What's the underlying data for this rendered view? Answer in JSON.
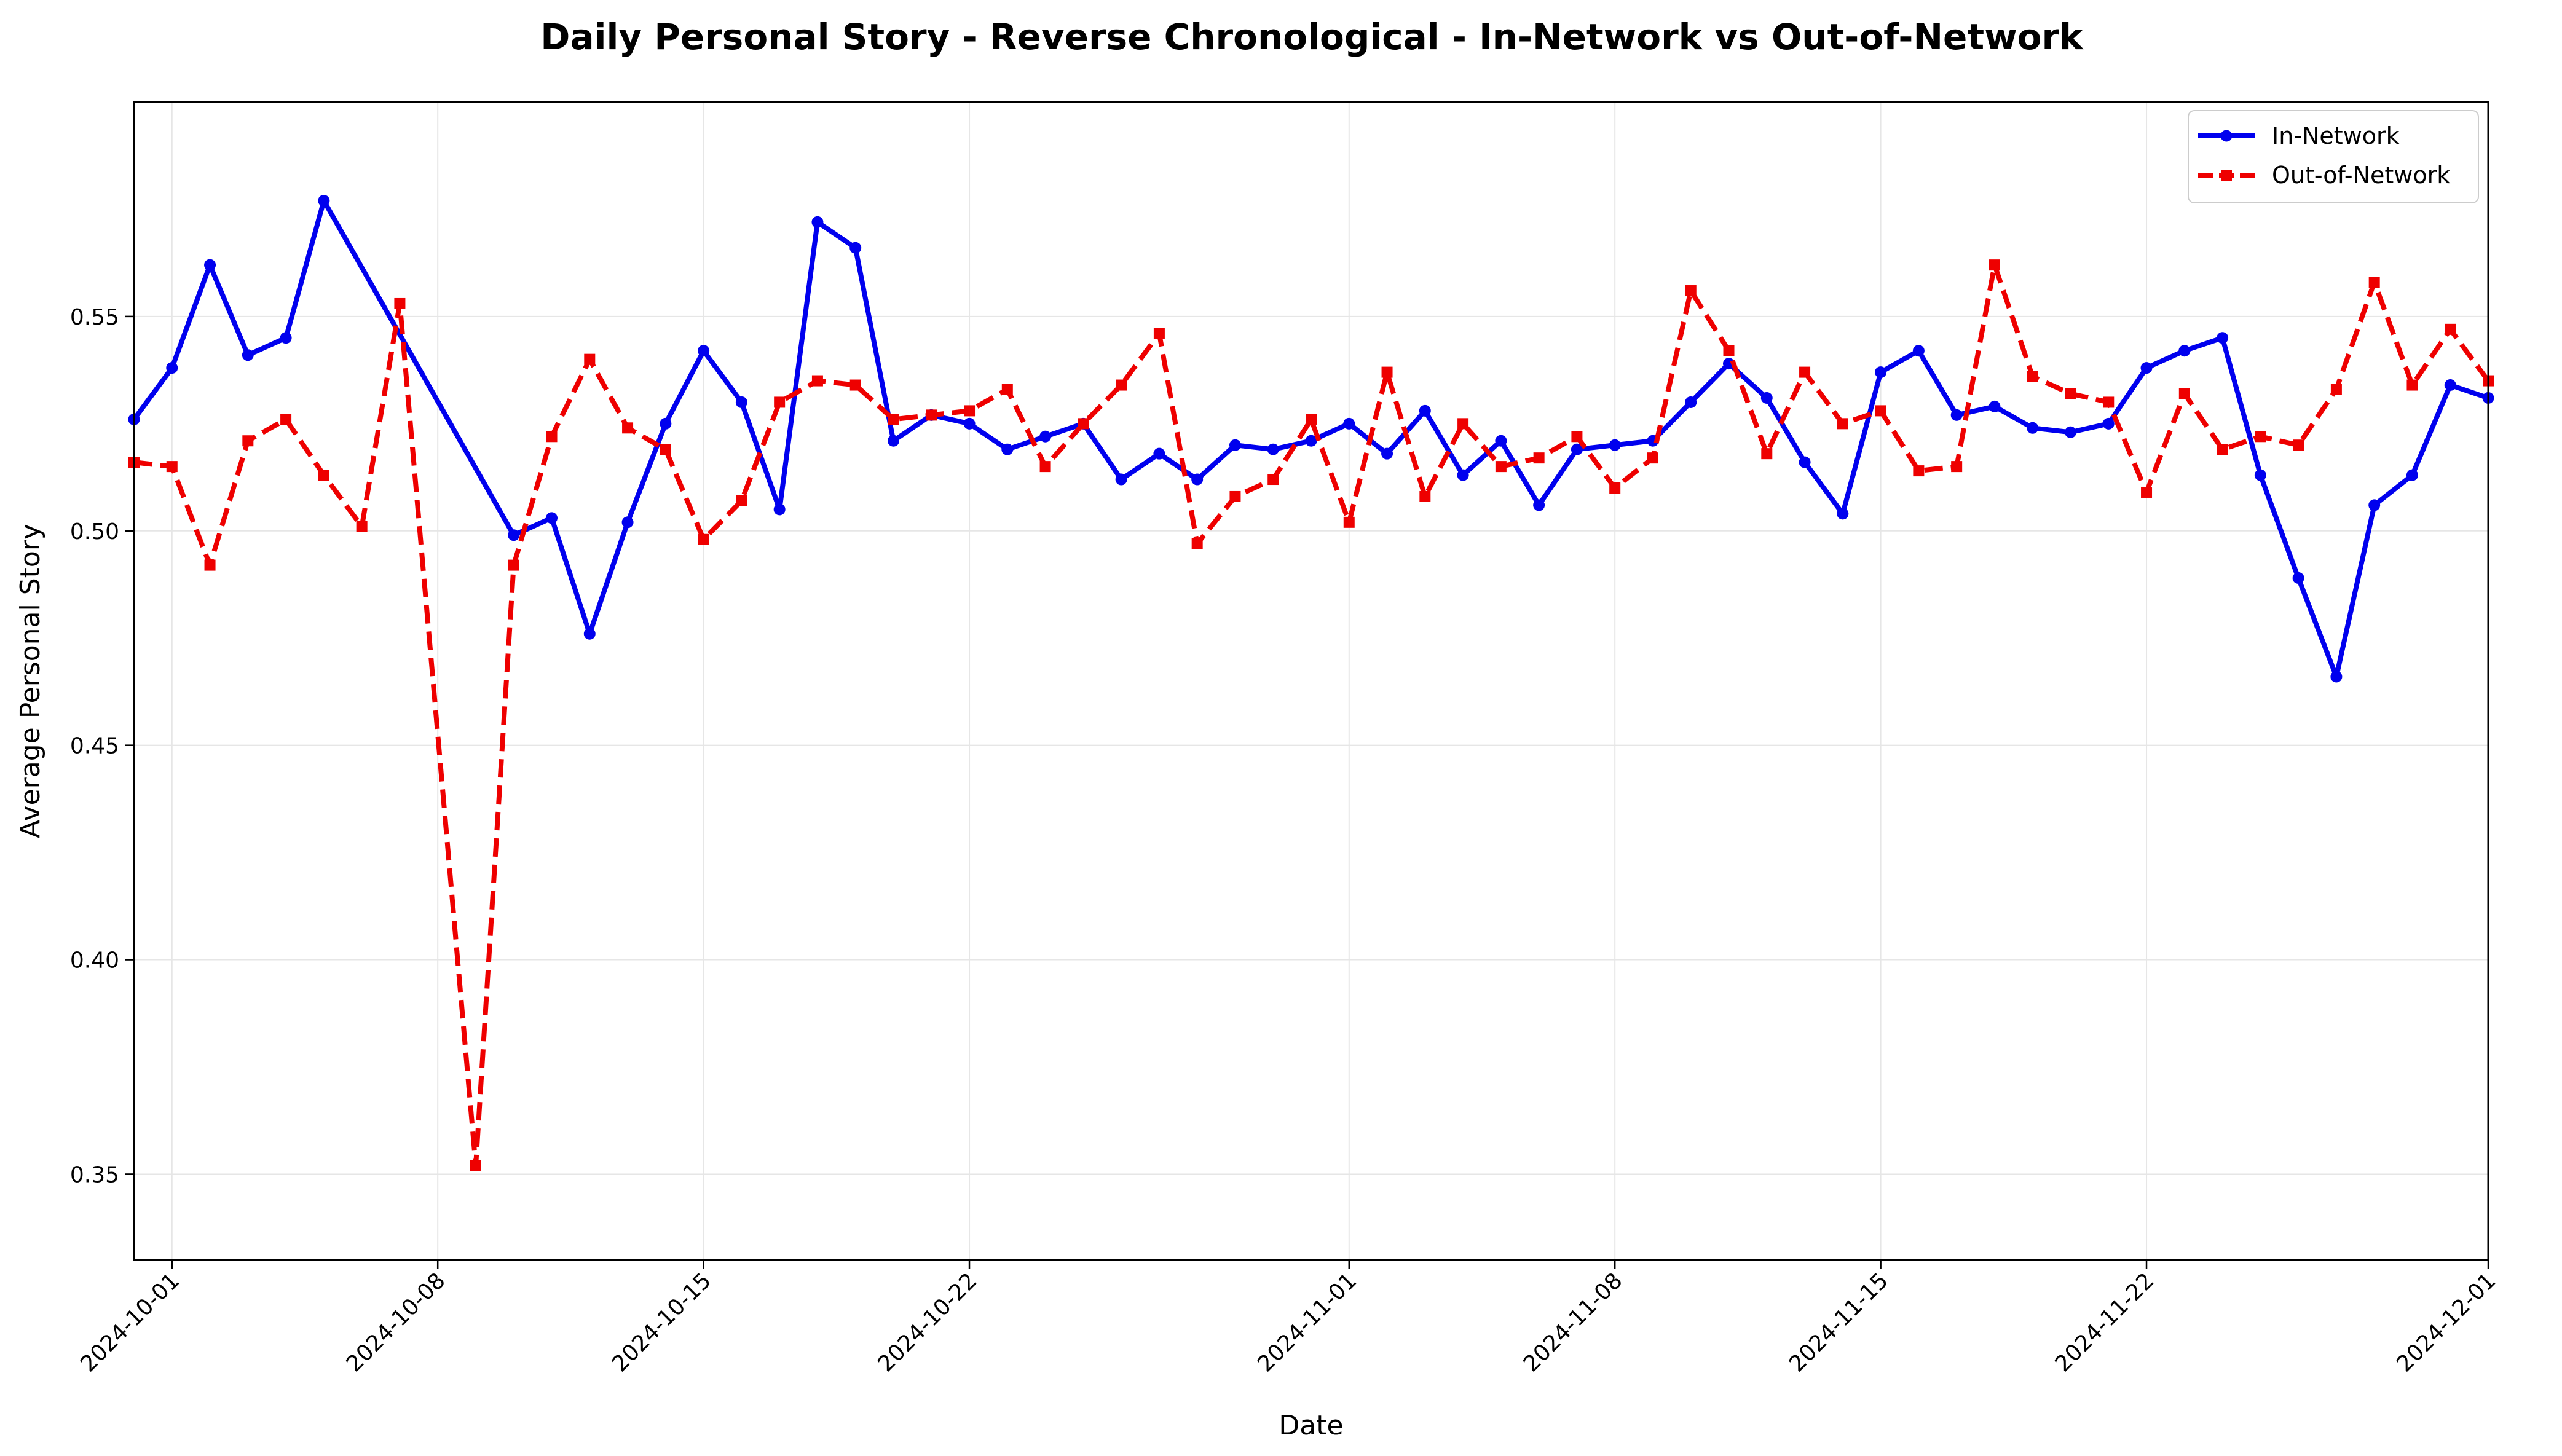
{
  "chart_data": {
    "type": "line",
    "title": "Daily Personal Story - Reverse Chronological - In-Network vs Out-of-Network",
    "xlabel": "Date",
    "ylabel": "Average Personal Story",
    "xlim": [
      "2024-09-30",
      "2024-12-01"
    ],
    "ylim": [
      0.33,
      0.6
    ],
    "x_ticks": [
      "2024-10-01",
      "2024-10-08",
      "2024-10-15",
      "2024-10-22",
      "2024-11-01",
      "2024-11-08",
      "2024-11-15",
      "2024-11-22",
      "2024-12-01"
    ],
    "y_ticks": [
      0.35,
      0.4,
      0.45,
      0.5,
      0.55
    ],
    "y_tick_labels": [
      "0.35",
      "0.40",
      "0.45",
      "0.50",
      "0.55"
    ],
    "grid": true,
    "legend_position": "top-right",
    "series": [
      {
        "name": "In-Network",
        "color": "#0000ee",
        "style": "solid",
        "marker": "circle",
        "points": [
          [
            "2024-09-30",
            0.526
          ],
          [
            "2024-10-01",
            0.538
          ],
          [
            "2024-10-02",
            0.562
          ],
          [
            "2024-10-03",
            0.541
          ],
          [
            "2024-10-04",
            0.545
          ],
          [
            "2024-10-05",
            0.577
          ],
          [
            "2024-10-10",
            0.499
          ],
          [
            "2024-10-11",
            0.503
          ],
          [
            "2024-10-12",
            0.476
          ],
          [
            "2024-10-13",
            0.502
          ],
          [
            "2024-10-14",
            0.525
          ],
          [
            "2024-10-15",
            0.542
          ],
          [
            "2024-10-16",
            0.53
          ],
          [
            "2024-10-17",
            0.505
          ],
          [
            "2024-10-18",
            0.572
          ],
          [
            "2024-10-19",
            0.566
          ],
          [
            "2024-10-20",
            0.521
          ],
          [
            "2024-10-21",
            0.527
          ],
          [
            "2024-10-22",
            0.525
          ],
          [
            "2024-10-23",
            0.519
          ],
          [
            "2024-10-24",
            0.522
          ],
          [
            "2024-10-25",
            0.525
          ],
          [
            "2024-10-26",
            0.512
          ],
          [
            "2024-10-27",
            0.518
          ],
          [
            "2024-10-28",
            0.512
          ],
          [
            "2024-10-29",
            0.52
          ],
          [
            "2024-10-30",
            0.519
          ],
          [
            "2024-10-31",
            0.521
          ],
          [
            "2024-11-01",
            0.525
          ],
          [
            "2024-11-02",
            0.518
          ],
          [
            "2024-11-03",
            0.528
          ],
          [
            "2024-11-04",
            0.513
          ],
          [
            "2024-11-05",
            0.521
          ],
          [
            "2024-11-06",
            0.506
          ],
          [
            "2024-11-07",
            0.519
          ],
          [
            "2024-11-08",
            0.52
          ],
          [
            "2024-11-09",
            0.521
          ],
          [
            "2024-11-10",
            0.53
          ],
          [
            "2024-11-11",
            0.539
          ],
          [
            "2024-11-12",
            0.531
          ],
          [
            "2024-11-13",
            0.516
          ],
          [
            "2024-11-14",
            0.504
          ],
          [
            "2024-11-15",
            0.537
          ],
          [
            "2024-11-16",
            0.542
          ],
          [
            "2024-11-17",
            0.527
          ],
          [
            "2024-11-18",
            0.529
          ],
          [
            "2024-11-19",
            0.524
          ],
          [
            "2024-11-20",
            0.523
          ],
          [
            "2024-11-21",
            0.525
          ],
          [
            "2024-11-22",
            0.538
          ],
          [
            "2024-11-23",
            0.542
          ],
          [
            "2024-11-24",
            0.545
          ],
          [
            "2024-11-25",
            0.513
          ],
          [
            "2024-11-26",
            0.489
          ],
          [
            "2024-11-27",
            0.466
          ],
          [
            "2024-11-28",
            0.506
          ],
          [
            "2024-11-29",
            0.513
          ],
          [
            "2024-11-30",
            0.534
          ],
          [
            "2024-12-01",
            0.531
          ]
        ]
      },
      {
        "name": "Out-of-Network",
        "color": "#ee0000",
        "style": "dashed",
        "marker": "square",
        "points": [
          [
            "2024-09-30",
            0.516
          ],
          [
            "2024-10-01",
            0.515
          ],
          [
            "2024-10-02",
            0.492
          ],
          [
            "2024-10-03",
            0.521
          ],
          [
            "2024-10-04",
            0.526
          ],
          [
            "2024-10-05",
            0.513
          ],
          [
            "2024-10-06",
            0.501
          ],
          [
            "2024-10-07",
            0.553
          ],
          [
            "2024-10-09",
            0.352
          ],
          [
            "2024-10-10",
            0.492
          ],
          [
            "2024-10-11",
            0.522
          ],
          [
            "2024-10-12",
            0.54
          ],
          [
            "2024-10-13",
            0.524
          ],
          [
            "2024-10-14",
            0.519
          ],
          [
            "2024-10-15",
            0.498
          ],
          [
            "2024-10-16",
            0.507
          ],
          [
            "2024-10-17",
            0.53
          ],
          [
            "2024-10-18",
            0.535
          ],
          [
            "2024-10-19",
            0.534
          ],
          [
            "2024-10-20",
            0.526
          ],
          [
            "2024-10-21",
            0.527
          ],
          [
            "2024-10-22",
            0.528
          ],
          [
            "2024-10-23",
            0.533
          ],
          [
            "2024-10-24",
            0.515
          ],
          [
            "2024-10-25",
            0.525
          ],
          [
            "2024-10-26",
            0.534
          ],
          [
            "2024-10-27",
            0.546
          ],
          [
            "2024-10-28",
            0.497
          ],
          [
            "2024-10-29",
            0.508
          ],
          [
            "2024-10-30",
            0.512
          ],
          [
            "2024-10-31",
            0.526
          ],
          [
            "2024-11-01",
            0.502
          ],
          [
            "2024-11-02",
            0.537
          ],
          [
            "2024-11-03",
            0.508
          ],
          [
            "2024-11-04",
            0.525
          ],
          [
            "2024-11-05",
            0.515
          ],
          [
            "2024-11-06",
            0.517
          ],
          [
            "2024-11-07",
            0.522
          ],
          [
            "2024-11-08",
            0.51
          ],
          [
            "2024-11-09",
            0.517
          ],
          [
            "2024-11-10",
            0.556
          ],
          [
            "2024-11-11",
            0.542
          ],
          [
            "2024-11-12",
            0.518
          ],
          [
            "2024-11-13",
            0.537
          ],
          [
            "2024-11-14",
            0.525
          ],
          [
            "2024-11-15",
            0.528
          ],
          [
            "2024-11-16",
            0.514
          ],
          [
            "2024-11-17",
            0.515
          ],
          [
            "2024-11-18",
            0.562
          ],
          [
            "2024-11-19",
            0.536
          ],
          [
            "2024-11-20",
            0.532
          ],
          [
            "2024-11-21",
            0.53
          ],
          [
            "2024-11-22",
            0.509
          ],
          [
            "2024-11-23",
            0.532
          ],
          [
            "2024-11-24",
            0.519
          ],
          [
            "2024-11-25",
            0.522
          ],
          [
            "2024-11-26",
            0.52
          ],
          [
            "2024-11-27",
            0.533
          ],
          [
            "2024-11-28",
            0.558
          ],
          [
            "2024-11-29",
            0.534
          ],
          [
            "2024-11-30",
            0.547
          ],
          [
            "2024-12-01",
            0.535
          ]
        ]
      }
    ]
  }
}
